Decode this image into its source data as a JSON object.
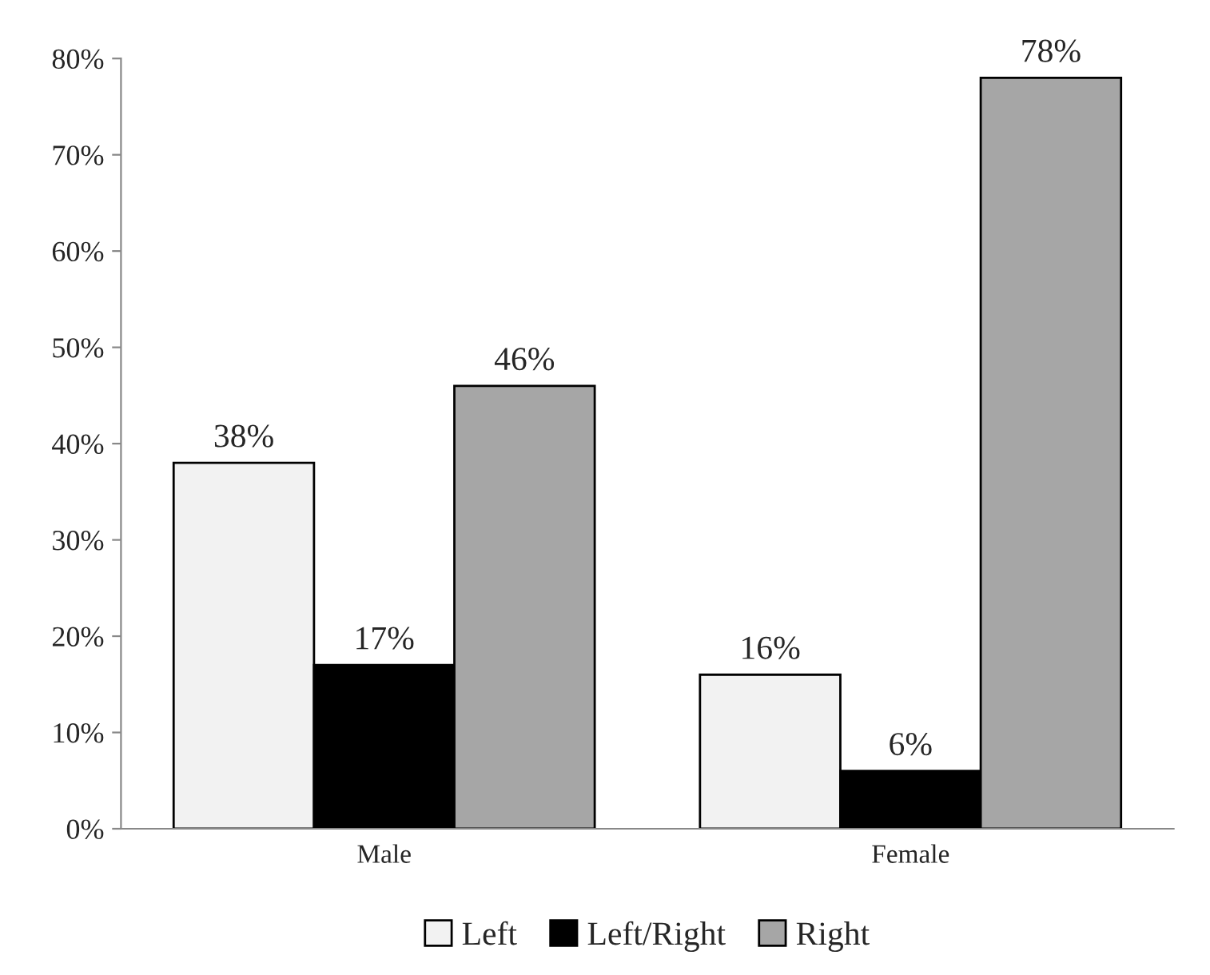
{
  "chart_data": {
    "type": "bar",
    "categories": [
      "Male",
      "Female"
    ],
    "series": [
      {
        "name": "Left",
        "color": "#f2f2f2",
        "values": [
          38,
          16
        ]
      },
      {
        "name": "Left/Right",
        "color": "#000000",
        "values": [
          17,
          6
        ]
      },
      {
        "name": "Right",
        "color": "#a6a6a6",
        "values": [
          46,
          78
        ]
      }
    ],
    "ylim": [
      0,
      80
    ],
    "yticks": [
      {
        "value": 0,
        "label": "0%"
      },
      {
        "value": 10,
        "label": "10%"
      },
      {
        "value": 20,
        "label": "20%"
      },
      {
        "value": 30,
        "label": "30%"
      },
      {
        "value": 40,
        "label": "40%"
      },
      {
        "value": 50,
        "label": "50%"
      },
      {
        "value": 60,
        "label": "60%"
      },
      {
        "value": 70,
        "label": "70%"
      },
      {
        "value": 80,
        "label": "80%"
      }
    ],
    "value_labels": [
      [
        "38%",
        "16%"
      ],
      [
        "17%",
        "6%"
      ],
      [
        "46%",
        "78%"
      ]
    ],
    "legend": "bottom",
    "grid": false
  }
}
